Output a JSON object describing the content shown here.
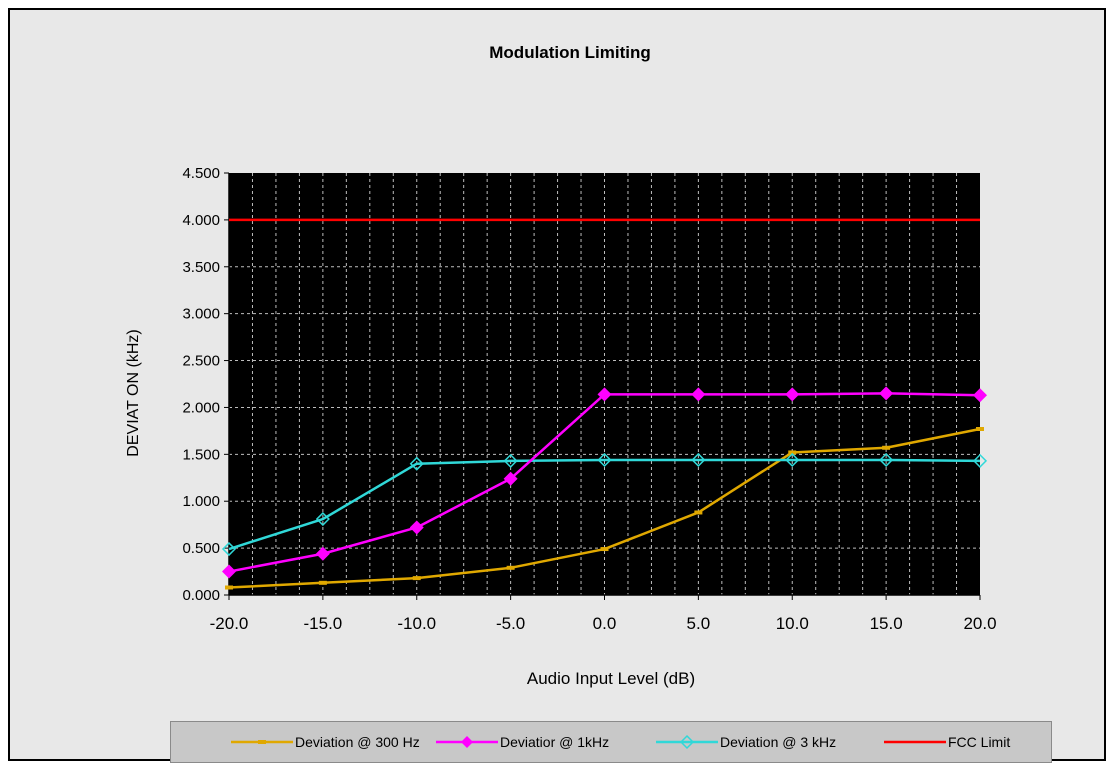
{
  "chart_data": {
    "type": "line",
    "title": "Modulation Limiting",
    "xlabel": "Audio Input Level (dB)",
    "ylabel": "DEVIAT ON (kHz)",
    "x": [
      -20,
      -15,
      -10,
      -5,
      0,
      5,
      10,
      15,
      20
    ],
    "x_tick_labels": [
      "-20.0",
      "-15.0",
      "-10.0",
      "-5.0",
      "0.0",
      "5.0",
      "10.0",
      "15.0",
      "20.0"
    ],
    "xlim": [
      -20,
      20
    ],
    "y_ticks": [
      0,
      0.5,
      1,
      1.5,
      2,
      2.5,
      3,
      3.5,
      4,
      4.5
    ],
    "y_tick_labels": [
      "0.000",
      "0.500",
      "1.000",
      "1.500",
      "2.000",
      "2.500",
      "3.000",
      "3.500",
      "4.000",
      "4.500"
    ],
    "ylim": [
      0,
      4.5
    ],
    "grid": true,
    "legend_position": "bottom",
    "plot_background": "#000000",
    "series": [
      {
        "name": "Deviation @ 300 Hz",
        "color": "#e0a800",
        "marker": "dash",
        "values": [
          0.08,
          0.13,
          0.18,
          0.29,
          0.49,
          0.88,
          1.52,
          1.57,
          1.77
        ]
      },
      {
        "name": "Deviatior @ 1kHz",
        "color": "#ff00ff",
        "marker": "diamond-filled",
        "values": [
          0.25,
          0.44,
          0.72,
          1.24,
          2.14,
          2.14,
          2.14,
          2.15,
          2.13
        ]
      },
      {
        "name": "Deviation @ 3 kHz",
        "color": "#30d8d8",
        "marker": "diamond-open",
        "values": [
          0.49,
          0.81,
          1.4,
          1.43,
          1.44,
          1.44,
          1.44,
          1.44,
          1.43
        ]
      },
      {
        "name": "FCC Limit",
        "color": "#ff0000",
        "marker": "none",
        "values": [
          4.0,
          4.0,
          4.0,
          4.0,
          4.0,
          4.0,
          4.0,
          4.0,
          4.0
        ]
      }
    ]
  }
}
